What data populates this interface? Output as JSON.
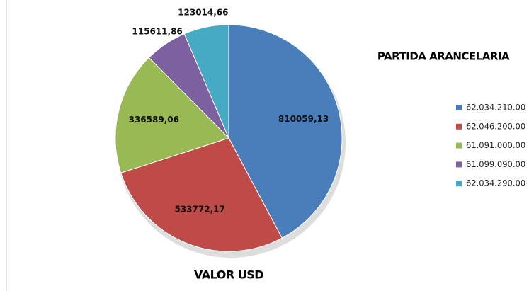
{
  "chart_data": {
    "type": "pie",
    "title": "VALOR USD",
    "legend_title": "PARTIDA ARANCELARIA",
    "categories": [
      "62.034.210.00",
      "62.046.200.00",
      "61.091.000.00",
      "61.099.090.00",
      "62.034.290.00"
    ],
    "values": [
      810059.13,
      533772.17,
      336589.06,
      115611.86,
      123014.66
    ],
    "value_labels": [
      "810059,13",
      "533772,17",
      "336589,06",
      "115611,86",
      "123014,66"
    ],
    "colors": [
      "#4a7ebb",
      "#be4b48",
      "#98b954",
      "#7d60a0",
      "#46aac4"
    ],
    "legend": "right"
  }
}
